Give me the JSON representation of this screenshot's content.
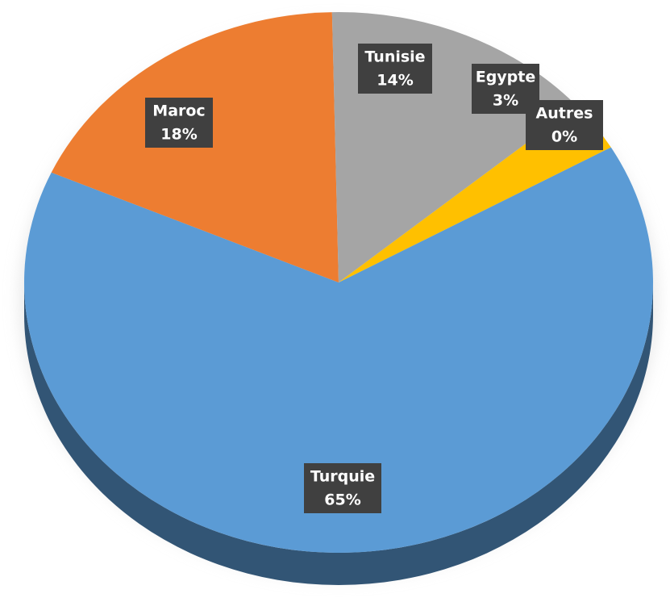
{
  "chart_data": {
    "type": "pie",
    "categories": [
      "Turquie",
      "Maroc",
      "Tunisie",
      "Egypte",
      "Autres"
    ],
    "values": [
      65,
      18,
      14,
      3,
      0
    ],
    "value_labels": [
      "65%",
      "18%",
      "14%",
      "3%",
      "0%"
    ],
    "colors": [
      "#5b9bd5",
      "#ed7d31",
      "#a5a5a5",
      "#ffc000",
      "#4472c4"
    ]
  }
}
